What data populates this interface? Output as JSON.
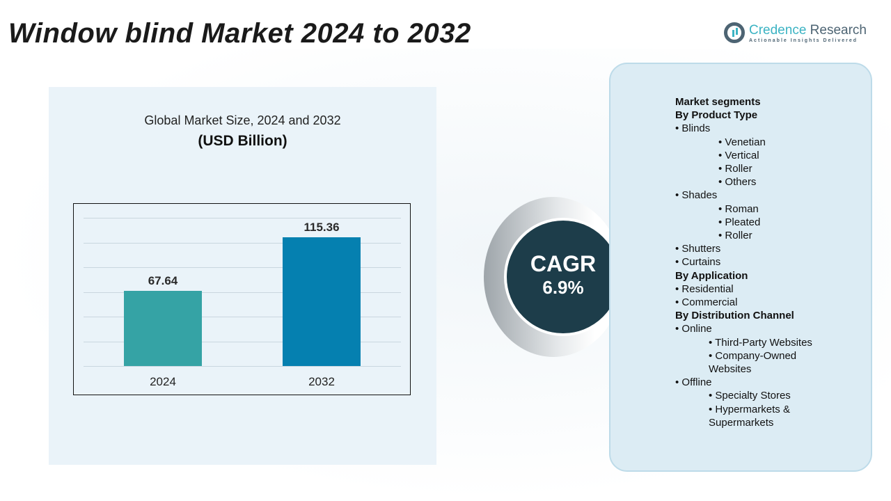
{
  "title": "Window blind Market 2024 to 2032",
  "logo": {
    "name_a": "Credence",
    "name_b": " Research",
    "tagline": "Actionable Insights Delivered"
  },
  "chart_data": {
    "type": "bar",
    "title": "Global Market Size, 2024 and 2032",
    "subtitle": "(USD Billion)",
    "categories": [
      "2024",
      "2032"
    ],
    "values": [
      67.64,
      115.36
    ],
    "value_labels": [
      "67.64",
      "115.36"
    ],
    "colors": [
      "#35a3a5",
      "#0580b0"
    ],
    "grid": true
  },
  "cagr": {
    "label": "CAGR",
    "value": "6.9%"
  },
  "segments": [
    {
      "text": "Market segments",
      "level": 0,
      "bold": true
    },
    {
      "text": "By Product Type",
      "level": 0,
      "bold": true
    },
    {
      "text": "•   Blinds",
      "level": 1
    },
    {
      "text": "• Venetian",
      "level": 2
    },
    {
      "text": "• Vertical",
      "level": 2
    },
    {
      "text": "•  Roller",
      "level": 2
    },
    {
      "text": "• Others",
      "level": 2
    },
    {
      "text": "•  Shades",
      "level": 1
    },
    {
      "text": "• Roman",
      "level": 2
    },
    {
      "text": "•  Pleated",
      "level": 2
    },
    {
      "text": "•   Roller",
      "level": 2
    },
    {
      "text": "•   Shutters",
      "level": 1
    },
    {
      "text": "•  Curtains",
      "level": 1
    },
    {
      "text": "By Application",
      "level": 0,
      "bold": true
    },
    {
      "text": "•  Residential",
      "level": 1
    },
    {
      "text": "•   Commercial",
      "level": 1
    },
    {
      "text": "By Distribution Channel",
      "level": 0,
      "bold": true
    },
    {
      "text": "• Online",
      "level": 1
    },
    {
      "text": "•   Third-Party Websites",
      "level": 3
    },
    {
      "text": "•  Company-Owned",
      "level": 3
    },
    {
      "text": "Websites",
      "level": 3
    },
    {
      "text": "•   Offline",
      "level": 1
    },
    {
      "text": "•  Specialty Stores",
      "level": 3
    },
    {
      "text": "•  Hypermarkets &",
      "level": 3
    },
    {
      "text": "Supermarkets",
      "level": 3
    }
  ]
}
